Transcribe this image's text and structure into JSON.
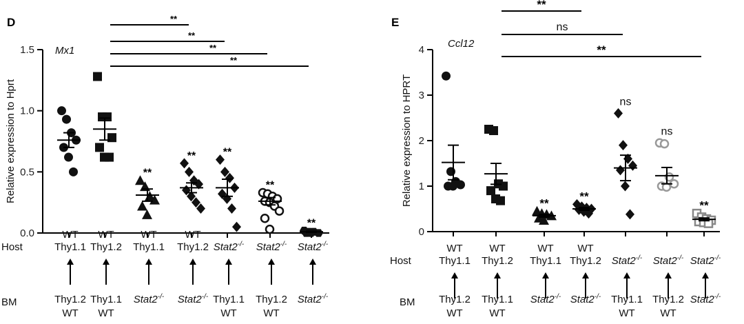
{
  "chart_data": [
    {
      "type": "scatter",
      "panel_label": "D",
      "title": "Mx1",
      "ylabel": "Relative expression to Hprt",
      "ylim": [
        0,
        1.5
      ],
      "yticks": [
        "0.0",
        "0.5",
        "1.0",
        "1.5"
      ],
      "host_label": "Host",
      "bm_label": "BM",
      "groups": [
        {
          "host": [
            "WT",
            "Thy1.1"
          ],
          "bm": [
            "Thy1.2",
            "WT"
          ],
          "marker": "circle",
          "color": "#111111",
          "values": [
            1.0,
            0.93,
            0.82,
            0.76,
            0.7,
            0.62,
            0.5
          ],
          "mean": 0.76,
          "sem": 0.06,
          "sig": ""
        },
        {
          "host": [
            "WT",
            "Thy1.2"
          ],
          "bm": [
            "Thy1.1",
            "WT"
          ],
          "marker": "square",
          "color": "#111111",
          "values": [
            1.28,
            0.95,
            0.95,
            0.78,
            0.7,
            0.62,
            0.62
          ],
          "mean": 0.85,
          "sem": 0.09,
          "sig": ""
        },
        {
          "host": [
            "WT",
            "Thy1.1"
          ],
          "bm": [
            "Stat2-/-",
            ""
          ],
          "marker": "triangle",
          "color": "#111111",
          "values": [
            0.43,
            0.38,
            0.3,
            0.27,
            0.22,
            0.15
          ],
          "mean": 0.31,
          "sem": 0.05,
          "sig": "**"
        },
        {
          "host": [
            "WT",
            "Thy1.2"
          ],
          "bm": [
            "Stat2-/-",
            ""
          ],
          "marker": "diamond",
          "color": "#111111",
          "values": [
            0.57,
            0.5,
            0.43,
            0.4,
            0.35,
            0.3,
            0.25,
            0.2
          ],
          "mean": 0.37,
          "sem": 0.04,
          "sig": "**"
        },
        {
          "host": [
            "",
            "Stat2-/-"
          ],
          "bm": [
            "Thy1.1",
            "WT"
          ],
          "marker": "diamond",
          "color": "#111111",
          "values": [
            0.6,
            0.5,
            0.45,
            0.37,
            0.32,
            0.28,
            0.2,
            0.05
          ],
          "mean": 0.37,
          "sem": 0.07,
          "sig": "**"
        },
        {
          "host": [
            "",
            "Stat2-/-"
          ],
          "bm": [
            "Thy1.2",
            "WT"
          ],
          "marker": "open-circle",
          "color": "#111111",
          "values": [
            0.33,
            0.32,
            0.3,
            0.28,
            0.26,
            0.25,
            0.22,
            0.18,
            0.12,
            0.03
          ],
          "mean": 0.26,
          "sem": 0.03,
          "sig": "**"
        },
        {
          "host": [
            "",
            "Stat2-/-"
          ],
          "bm": [
            "Stat2-/-",
            ""
          ],
          "marker": "hexagon",
          "color": "#111111",
          "values": [
            0.02,
            0.01,
            0.01,
            0.0,
            0.0,
            0.0
          ],
          "mean": 0.01,
          "sem": 0.005,
          "sig": "**"
        }
      ],
      "comparisons": [
        {
          "from": 1,
          "to": 3,
          "label": "**"
        },
        {
          "from": 1,
          "to": 4,
          "label": "**"
        },
        {
          "from": 1,
          "to": 5,
          "label": "**"
        },
        {
          "from": 1,
          "to": 6,
          "label": "**"
        }
      ]
    },
    {
      "type": "scatter",
      "panel_label": "E",
      "title": "Ccl12",
      "ylabel": "Relative expression to HPRT",
      "ylim": [
        0,
        4
      ],
      "yticks": [
        "0",
        "1",
        "2",
        "3",
        "4"
      ],
      "host_label": "Host",
      "bm_label": "BM",
      "groups": [
        {
          "host": [
            "WT",
            "Thy1.1"
          ],
          "bm": [
            "Thy1.2",
            "WT"
          ],
          "marker": "circle",
          "color": "#111111",
          "values": [
            3.42,
            1.32,
            1.1,
            1.03,
            1.0,
            1.0
          ],
          "mean": 1.52,
          "sem": 0.38,
          "sig": ""
        },
        {
          "host": [
            "WT",
            "Thy1.2"
          ],
          "bm": [
            "Thy1.1",
            "WT"
          ],
          "marker": "square",
          "color": "#111111",
          "values": [
            2.25,
            2.22,
            1.05,
            1.0,
            0.9,
            0.72,
            0.68
          ],
          "mean": 1.27,
          "sem": 0.23,
          "sig": ""
        },
        {
          "host": [
            "WT",
            "Thy1.1"
          ],
          "bm": [
            "Stat2-/-",
            ""
          ],
          "marker": "triangle",
          "color": "#111111",
          "values": [
            0.45,
            0.4,
            0.38,
            0.35,
            0.3,
            0.25
          ],
          "mean": 0.35,
          "sem": 0.03,
          "sig": "**"
        },
        {
          "host": [
            "WT",
            "Thy1.2"
          ],
          "bm": [
            "Stat2-/-",
            ""
          ],
          "marker": "diamond",
          "color": "#111111",
          "values": [
            0.6,
            0.55,
            0.52,
            0.5,
            0.48,
            0.44,
            0.4
          ],
          "mean": 0.5,
          "sem": 0.03,
          "sig": "**"
        },
        {
          "host": [
            "",
            "Stat2-/-"
          ],
          "bm": [
            "Thy1.1",
            "WT"
          ],
          "marker": "diamond",
          "color": "#111111",
          "values": [
            2.6,
            1.9,
            1.6,
            1.45,
            1.35,
            1.0,
            0.38
          ],
          "mean": 1.4,
          "sem": 0.28,
          "sig": "ns"
        },
        {
          "host": [
            "",
            "Stat2-/-"
          ],
          "bm": [
            "Thy1.2",
            "WT"
          ],
          "marker": "open-circle",
          "color": "#999999",
          "values": [
            1.95,
            1.93,
            1.2,
            1.05,
            1.0,
            0.98
          ],
          "mean": 1.23,
          "sem": 0.18,
          "sig": "ns"
        },
        {
          "host": [
            "",
            "Stat2-/-"
          ],
          "bm": [
            "Stat2-/-",
            ""
          ],
          "marker": "open-square",
          "color": "#888888",
          "values": [
            0.4,
            0.32,
            0.28,
            0.25,
            0.22,
            0.2,
            0.18
          ],
          "mean": 0.27,
          "sem": 0.03,
          "sig": "**"
        }
      ],
      "comparisons": [
        {
          "from": 1,
          "to": 3,
          "label": "**"
        },
        {
          "from": 1,
          "to": 4,
          "label": "ns"
        },
        {
          "from": 1,
          "to": 6,
          "label": "**"
        }
      ]
    }
  ]
}
